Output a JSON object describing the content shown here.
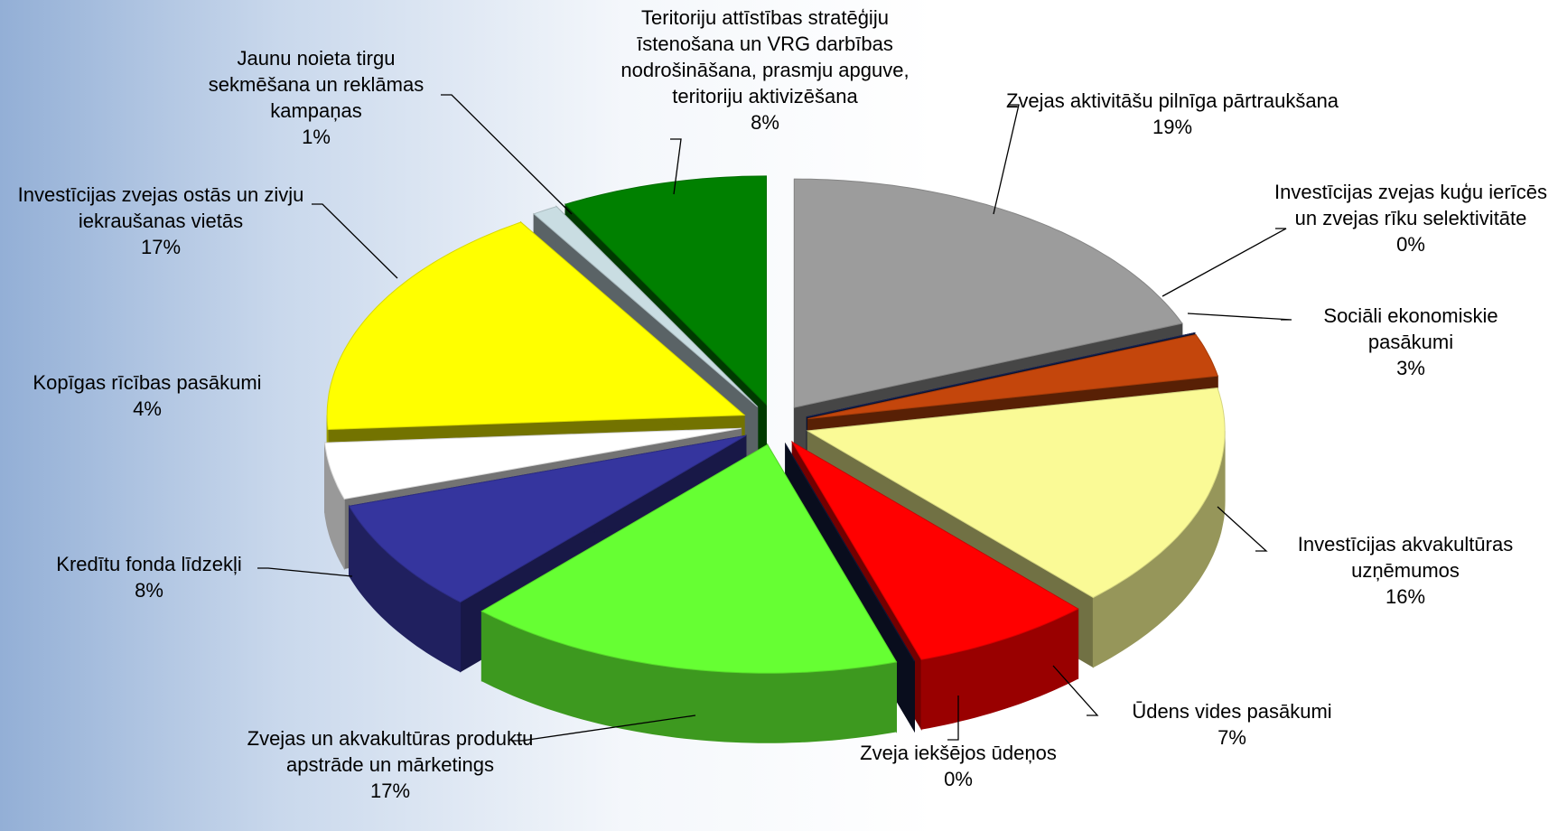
{
  "chart_data": {
    "type": "pie3d",
    "categories": [
      "Zvejas aktivitāšu pilnīga pārtraukšana",
      "Investīcijas zvejas kuģu ierīcēs un zvejas rīku selektivitāte",
      "Sociāli ekonomiskie pasākumi",
      "Investīcijas akvakultūras uzņēmumos",
      "Ūdens vides pasākumi",
      "Zveja iekšējos ūdeņos",
      "Zvejas un akvakultūras produktu apstrāde un mārketings",
      "Kredītu fonda līdzekļi",
      "Kopīgas rīcības pasākumi",
      "Investīcijas zvejas ostās un zivju iekraušanas vietās",
      "Jaunu noieta tirgu sekmēšana un reklāmas kampaņas",
      "Teritoriju attīstības stratēģiju īstenošana un VRG darbības nodrošināšana, prasmju apguve, teritoriju aktivizēšana"
    ],
    "values": [
      19,
      0,
      3,
      16,
      7,
      0,
      17,
      8,
      4,
      17,
      1,
      8
    ],
    "value_labels": [
      "19%",
      "0%",
      "3%",
      "16%",
      "7%",
      "0%",
      "17%",
      "8%",
      "4%",
      "17%",
      "1%",
      "8%"
    ],
    "colors": [
      "#9c9c9c",
      "#1c2a66",
      "#c4460c",
      "#fafa96",
      "#ff0000",
      "#141c40",
      "#66ff33",
      "#35359e",
      "#ffffff",
      "#ffff00",
      "#c9dde2",
      "#008000"
    ]
  }
}
